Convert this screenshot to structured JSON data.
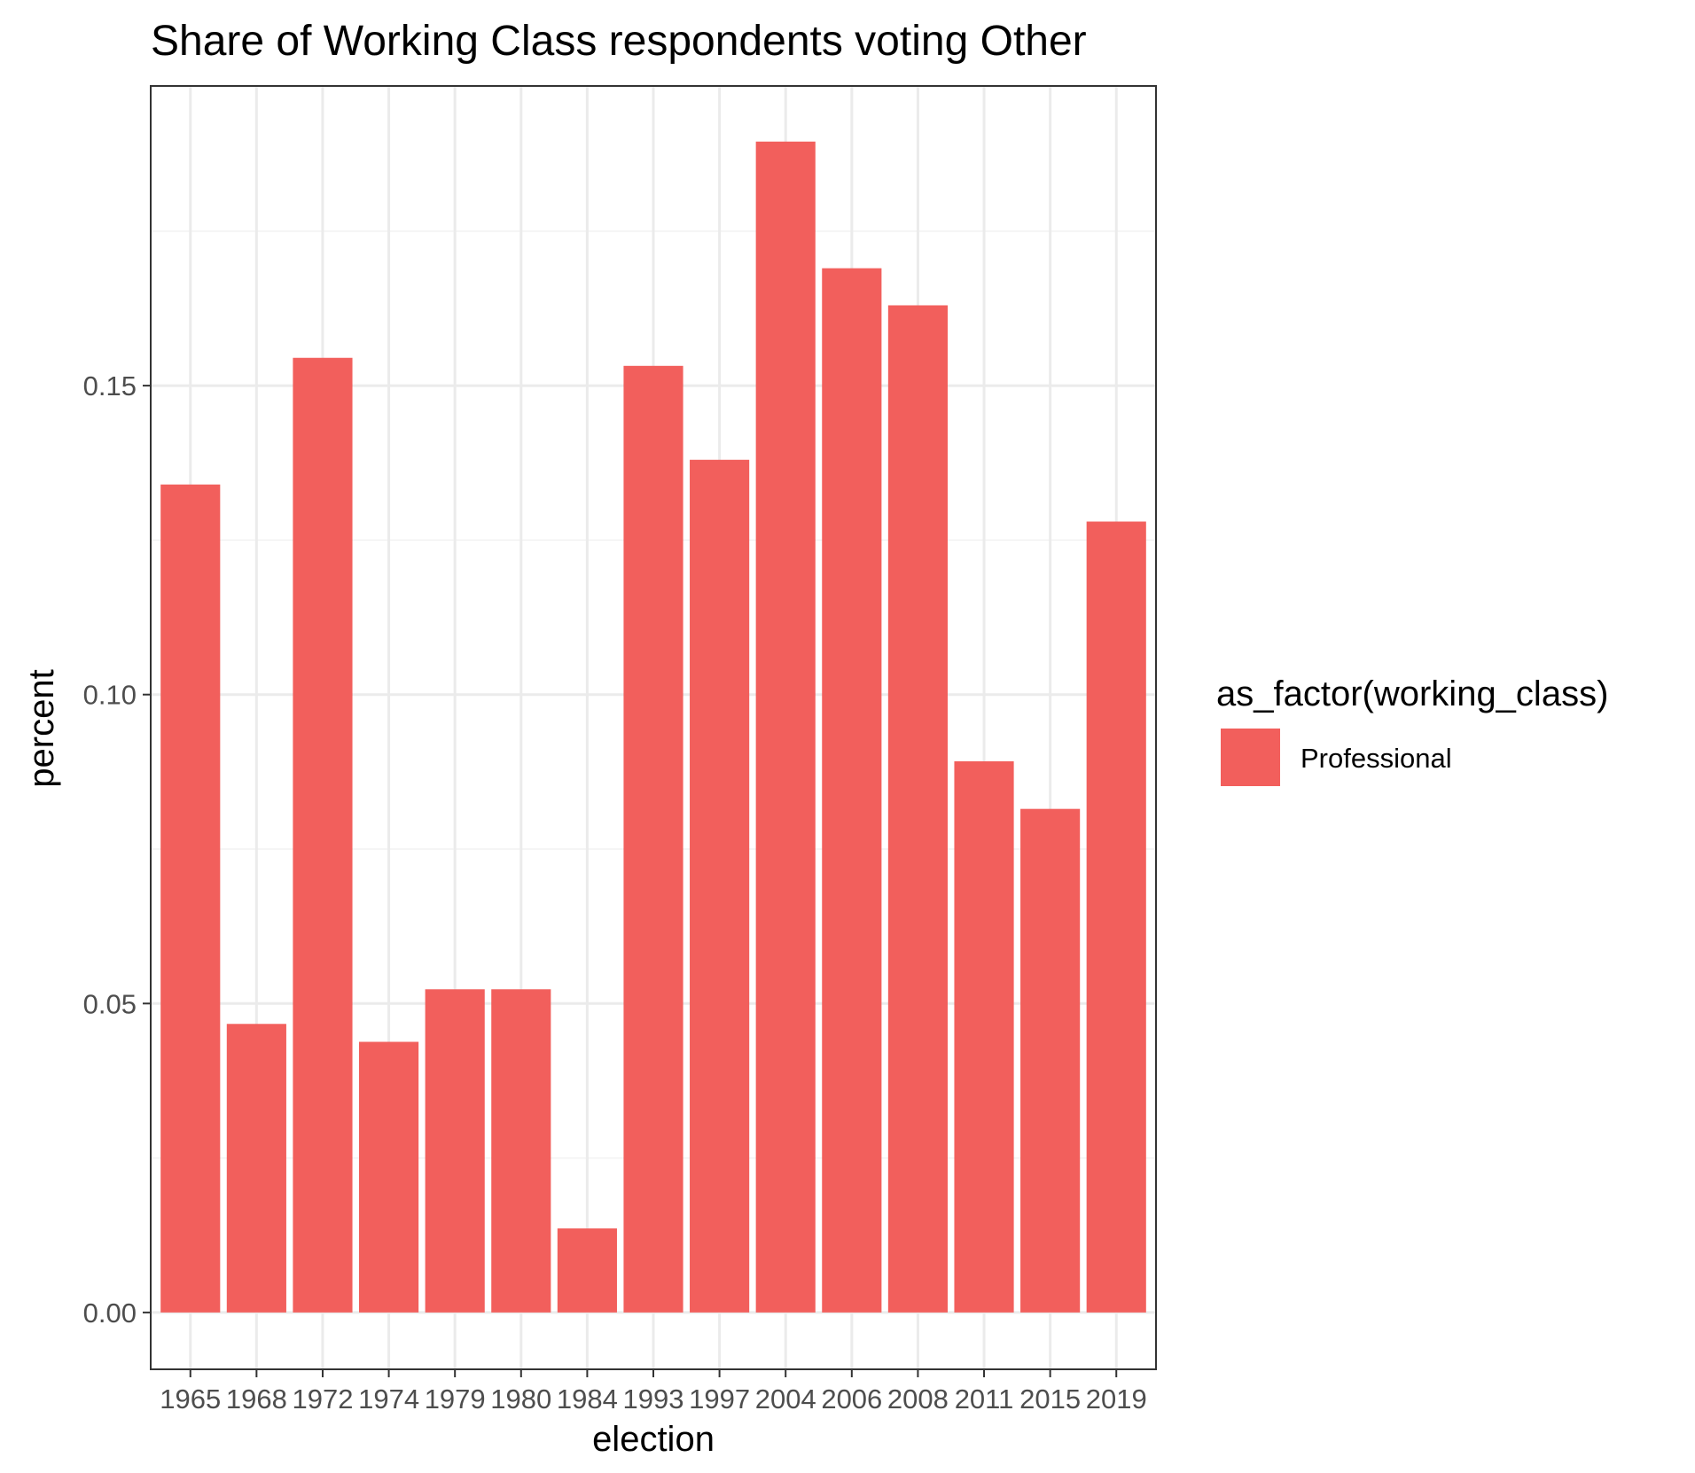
{
  "chart_data": {
    "type": "bar",
    "title": "Share of Working Class respondents voting Other",
    "xlabel": "election",
    "ylabel": "percent",
    "categories": [
      "1965",
      "1968",
      "1972",
      "1974",
      "1979",
      "1980",
      "1984",
      "1993",
      "1997",
      "2004",
      "2006",
      "2008",
      "2011",
      "2015",
      "2019"
    ],
    "series": [
      {
        "name": "Professional",
        "values": [
          0.134,
          0.0467,
          0.1545,
          0.0438,
          0.0523,
          0.0523,
          0.0136,
          0.1532,
          0.138,
          0.1895,
          0.169,
          0.163,
          0.0892,
          0.0815,
          0.128
        ]
      }
    ],
    "ylim": [
      -0.0092,
      0.1985
    ],
    "yticks": [
      0.0,
      0.05,
      0.1,
      0.15
    ],
    "ytick_labels": [
      "0.00",
      "0.05",
      "0.10",
      "0.15"
    ],
    "grid": true,
    "legend": {
      "title": "as_factor(working_class)",
      "position": "right"
    },
    "colors": {
      "bar": "#F25F5C",
      "grid_major": "#EBEBEB",
      "grid_minor": "#F2F2F2",
      "panel_border": "#333333",
      "tick_text": "#4D4D4D"
    }
  }
}
